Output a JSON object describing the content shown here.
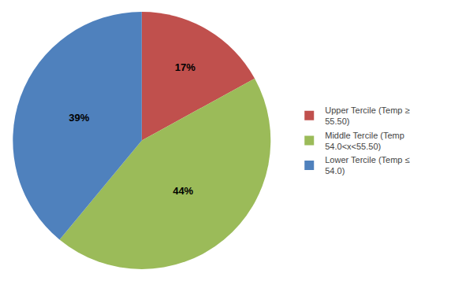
{
  "chart_data": {
    "type": "pie",
    "categories": [
      "Upper Tercile (Temp ≥\n55.50)",
      "Middle Tercile (Temp\n54.0<x<55.50)",
      "Lower Tercile (Temp ≤\n54.0)"
    ],
    "values": [
      17,
      44,
      39
    ],
    "value_labels": [
      "17%",
      "44%",
      "39%"
    ],
    "colors": [
      "#c0504d",
      "#9bbb59",
      "#4f81bd"
    ],
    "data_labels": true,
    "legend": "right"
  }
}
